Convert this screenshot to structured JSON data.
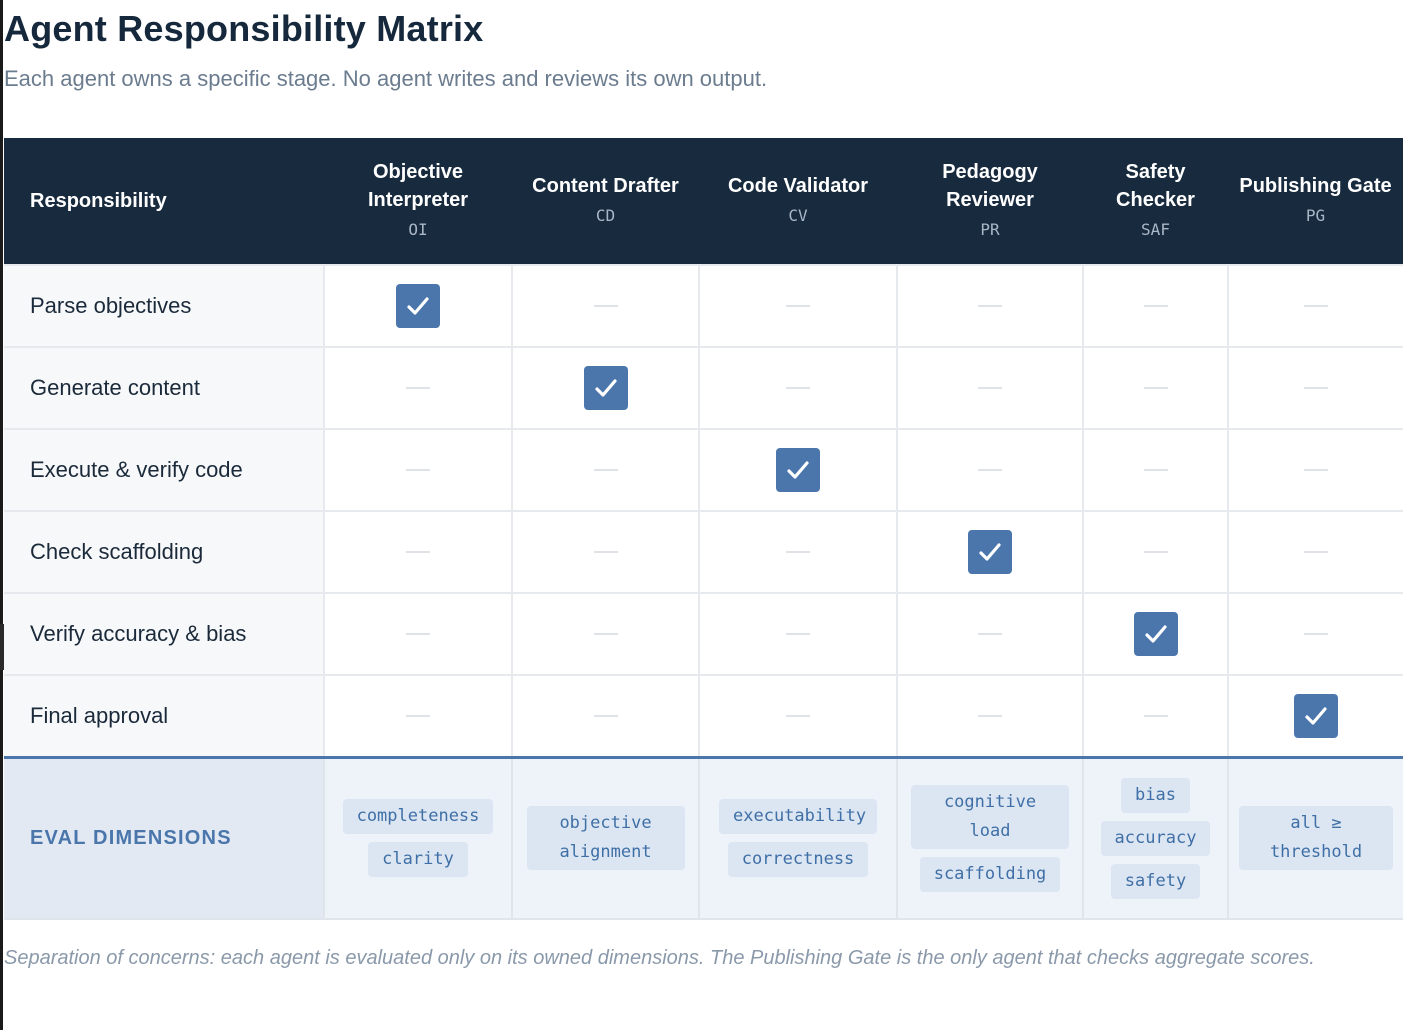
{
  "page": {
    "title": "Agent Responsibility Matrix",
    "subtitle": "Each agent owns a specific stage. No agent writes and reviews its own output."
  },
  "table": {
    "responsibility_header": "Responsibility",
    "agents": [
      {
        "name": "Objective Interpreter",
        "abbr": "OI"
      },
      {
        "name": "Content Drafter",
        "abbr": "CD"
      },
      {
        "name": "Code Validator",
        "abbr": "CV"
      },
      {
        "name": "Pedagogy Reviewer",
        "abbr": "PR"
      },
      {
        "name": "Safety Checker",
        "abbr": "SAF"
      },
      {
        "name": "Publishing Gate",
        "abbr": "PG"
      }
    ],
    "rows": [
      {
        "label": "Parse objectives",
        "owners": [
          true,
          false,
          false,
          false,
          false,
          false
        ]
      },
      {
        "label": "Generate content",
        "owners": [
          false,
          true,
          false,
          false,
          false,
          false
        ]
      },
      {
        "label": "Execute & verify code",
        "owners": [
          false,
          false,
          true,
          false,
          false,
          false
        ]
      },
      {
        "label": "Check scaffolding",
        "owners": [
          false,
          false,
          false,
          true,
          false,
          false
        ]
      },
      {
        "label": "Verify accuracy & bias",
        "owners": [
          false,
          false,
          false,
          false,
          true,
          false
        ]
      },
      {
        "label": "Final approval",
        "owners": [
          false,
          false,
          false,
          false,
          false,
          true
        ]
      }
    ],
    "eval": {
      "label": "EVAL DIMENSIONS",
      "dimensions": [
        [
          "completeness",
          "clarity"
        ],
        [
          "objective alignment"
        ],
        [
          "executability",
          "correctness"
        ],
        [
          "cognitive load",
          "scaffolding"
        ],
        [
          "bias",
          "accuracy",
          "safety"
        ],
        [
          "all ≥ threshold"
        ]
      ]
    }
  },
  "footnote": "Separation of concerns: each agent is evaluated only on its owned dimensions. The Publishing Gate is the only agent that checks aggregate scores.",
  "colors": {
    "header_bg": "#182a3e",
    "accent": "#4a76ac",
    "chip_bg": "#dbe6f2",
    "eval_bg": "#eef3f9"
  },
  "icons": {
    "owned": "check-icon",
    "not_owned": "dash-icon"
  }
}
